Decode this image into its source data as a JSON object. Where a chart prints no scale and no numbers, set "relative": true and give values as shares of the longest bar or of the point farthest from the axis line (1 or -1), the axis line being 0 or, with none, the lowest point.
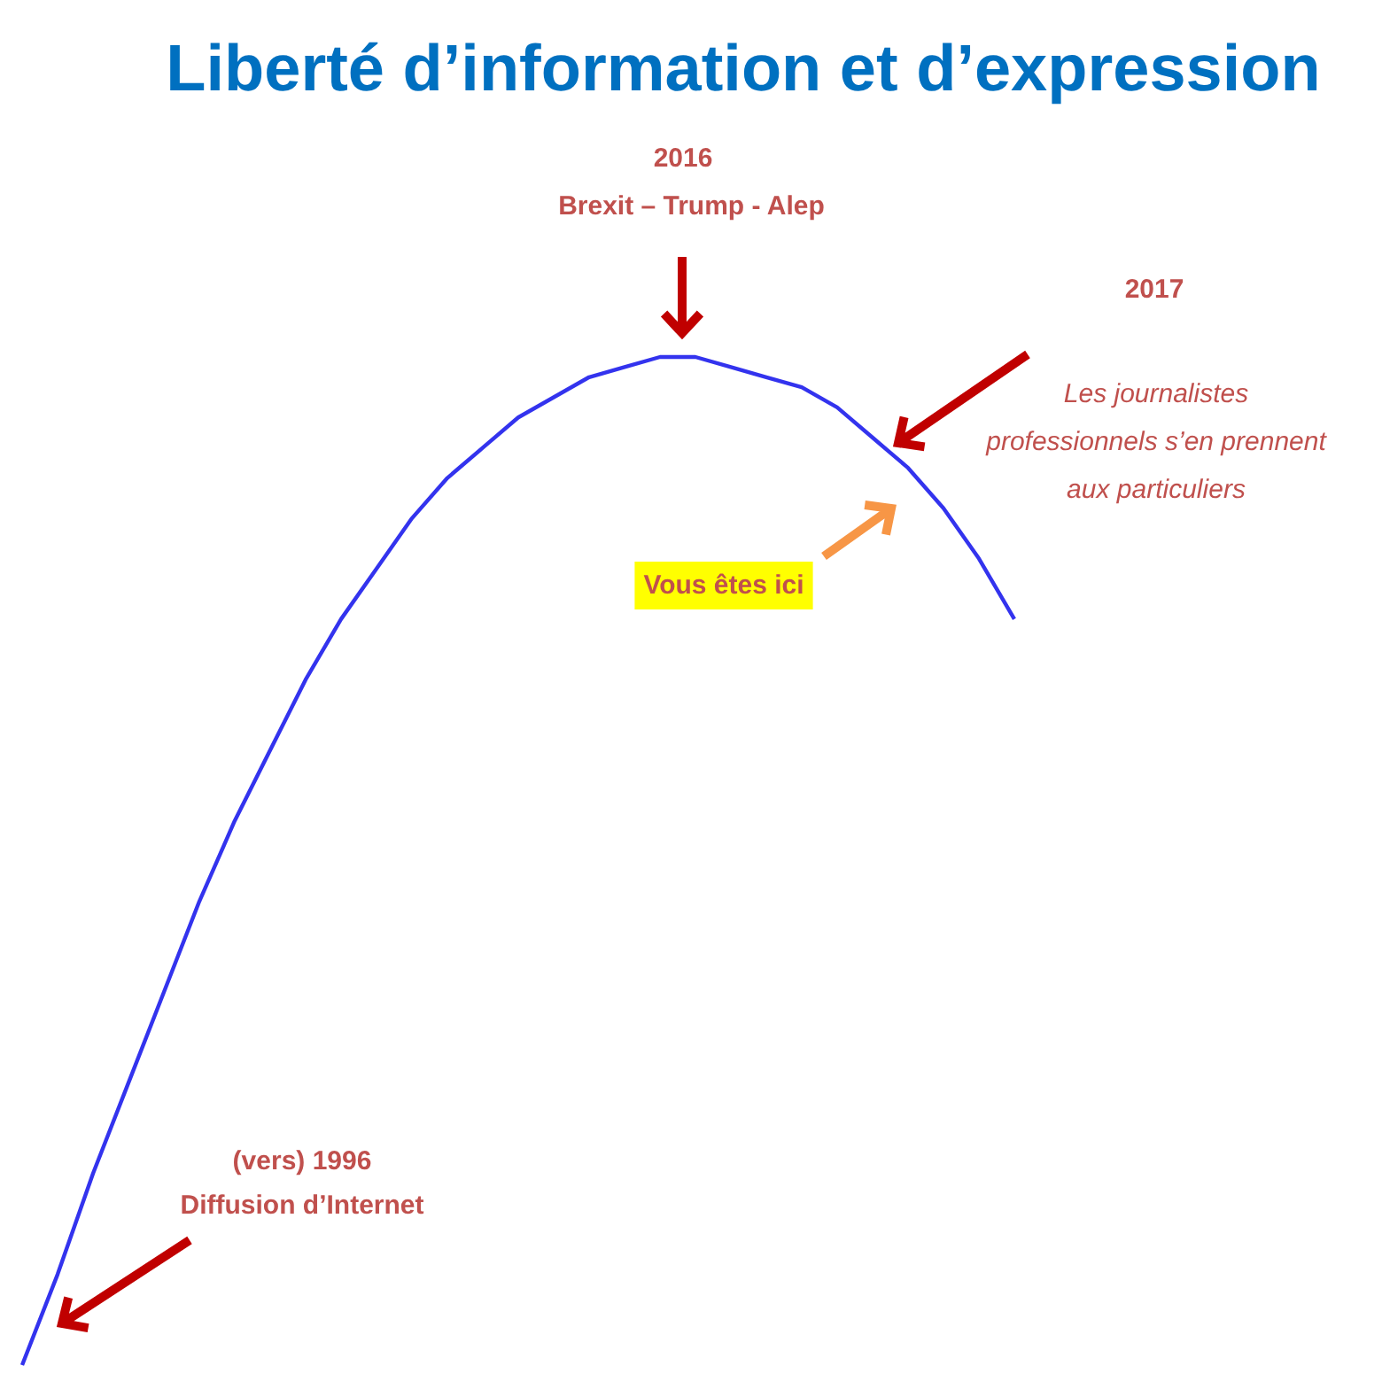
{
  "chart_data": {
    "type": "line",
    "title": "Liberté d’information et d’expression",
    "relative": true,
    "categories": [
      null,
      null,
      null,
      null,
      null,
      null,
      null,
      null,
      null,
      null,
      null,
      null,
      null,
      null,
      null,
      null,
      null,
      null,
      null,
      null,
      null,
      null,
      null,
      null,
      null,
      null,
      null,
      null,
      null
    ],
    "series": [
      {
        "color": "#3333ee",
        "values": [
          0,
          0.09,
          0.19,
          0.28,
          0.37,
          0.46,
          0.54,
          0.61,
          0.68,
          0.74,
          0.79,
          0.84,
          0.88,
          0.91,
          0.94,
          0.96,
          0.98,
          0.99,
          1,
          1,
          0.99,
          0.98,
          0.97,
          0.95,
          0.92,
          0.89,
          0.85,
          0.8,
          0.74
        ]
      }
    ],
    "annotations": [
      "2016",
      "Brexit – Trump - Alep",
      "2017",
      "Les journalistes professionnels s’en prennent aux particuliers",
      "Vous êtes ici",
      "(vers) 1996",
      "Diffusion d’Internet"
    ]
  }
}
